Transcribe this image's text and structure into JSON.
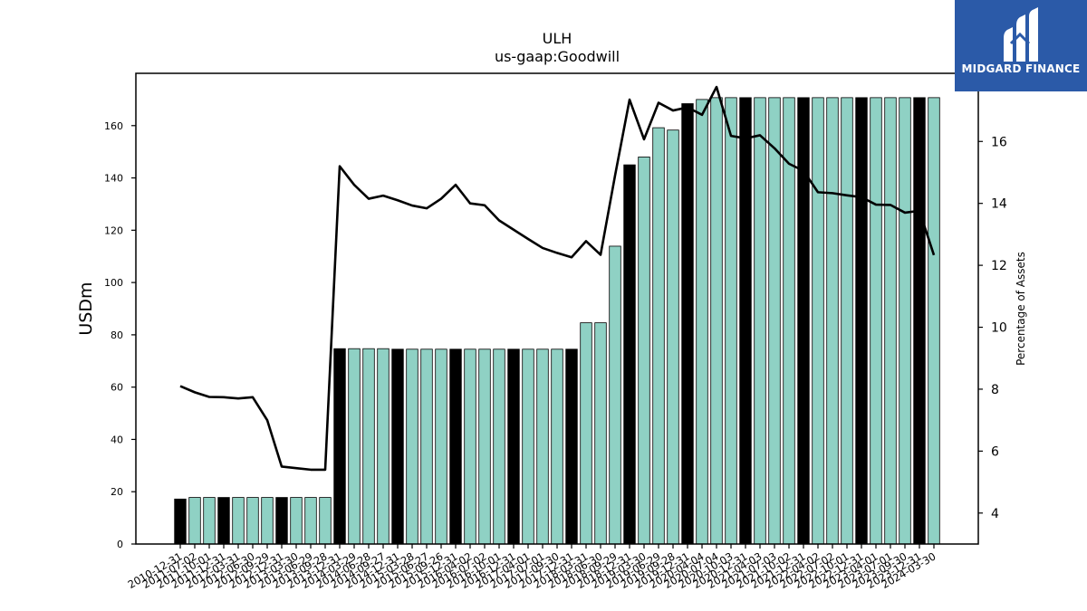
{
  "logo": {
    "text": "MIDGARD FINANCE",
    "icon": "midgard-logo-icon",
    "bg": "#2b5aa8"
  },
  "chart_data": {
    "type": "bar",
    "title": "ULH",
    "subtitle": "us-gaap:Goodwill",
    "ylabel": "USDm",
    "y2label": "Percentage of Assets",
    "ylim": [
      0,
      180
    ],
    "yticks": [
      0,
      20,
      40,
      60,
      80,
      100,
      120,
      140,
      160
    ],
    "y2lim": [
      3,
      18.2
    ],
    "y2ticks": [
      4,
      6,
      8,
      10,
      12,
      14,
      16
    ],
    "colors": {
      "annual": "#000000",
      "quarter": "#8fd1c4",
      "line": "#000000"
    },
    "categories": [
      "2010-12-31",
      "2011-07-02",
      "2011-10-01",
      "2011-12-31",
      "2012-03-31",
      "2012-06-30",
      "2012-09-29",
      "2012-12-31",
      "2013-03-30",
      "2013-06-29",
      "2013-09-28",
      "2013-12-31",
      "2014-03-29",
      "2014-06-28",
      "2014-09-27",
      "2014-12-31",
      "2015-03-28",
      "2015-06-27",
      "2015-09-26",
      "2015-12-31",
      "2016-04-02",
      "2016-07-02",
      "2016-10-01",
      "2016-12-31",
      "2017-04-01",
      "2017-07-01",
      "2017-09-30",
      "2017-12-31",
      "2018-03-31",
      "2018-06-30",
      "2018-09-29",
      "2018-12-31",
      "2019-03-30",
      "2019-06-29",
      "2019-09-28",
      "2019-12-31",
      "2020-04-04",
      "2020-07-04",
      "2020-10-03",
      "2020-12-31",
      "2021-04-03",
      "2021-07-03",
      "2021-10-02",
      "2021-12-31",
      "2022-04-02",
      "2022-07-02",
      "2022-10-01",
      "2022-12-31",
      "2023-04-01",
      "2023-07-01",
      "2023-09-30",
      "2023-12-31",
      "2024-03-30"
    ],
    "goodwill": [
      17.2,
      17.8,
      17.8,
      17.8,
      17.8,
      17.8,
      17.8,
      17.8,
      17.8,
      17.8,
      17.8,
      74.7,
      74.7,
      74.7,
      74.7,
      74.5,
      74.5,
      74.5,
      74.5,
      74.5,
      74.5,
      74.5,
      74.5,
      74.5,
      74.5,
      74.5,
      74.5,
      74.5,
      84.6,
      84.6,
      113.9,
      145.0,
      148.0,
      159.2,
      158.3,
      168.4,
      170.0,
      170.7,
      170.7,
      170.7,
      170.7,
      170.7,
      170.7,
      170.7,
      170.7,
      170.7,
      170.7,
      170.7,
      170.7,
      170.7,
      170.7,
      170.7,
      170.7
    ],
    "annual": [
      true,
      false,
      false,
      true,
      false,
      false,
      false,
      true,
      false,
      false,
      false,
      true,
      false,
      false,
      false,
      true,
      false,
      false,
      false,
      true,
      false,
      false,
      false,
      true,
      false,
      false,
      false,
      true,
      false,
      false,
      false,
      true,
      false,
      false,
      false,
      true,
      false,
      false,
      false,
      true,
      false,
      false,
      false,
      true,
      false,
      false,
      false,
      true,
      false,
      false,
      false,
      true,
      false
    ],
    "pct_assets": [
      8.1,
      7.9,
      7.75,
      7.74,
      7.7,
      7.74,
      7.0,
      5.5,
      5.45,
      5.4,
      5.4,
      15.2,
      14.6,
      14.15,
      14.25,
      14.1,
      13.93,
      13.84,
      14.15,
      14.6,
      14.0,
      13.94,
      13.45,
      13.15,
      12.85,
      12.56,
      12.4,
      12.26,
      12.78,
      12.34,
      14.9,
      17.35,
      16.07,
      17.25,
      17.0,
      17.1,
      16.86,
      17.76,
      16.18,
      16.1,
      16.2,
      15.78,
      15.28,
      15.05,
      14.36,
      14.33,
      14.26,
      14.2,
      13.96,
      13.95,
      13.7,
      13.76,
      12.33
    ]
  }
}
